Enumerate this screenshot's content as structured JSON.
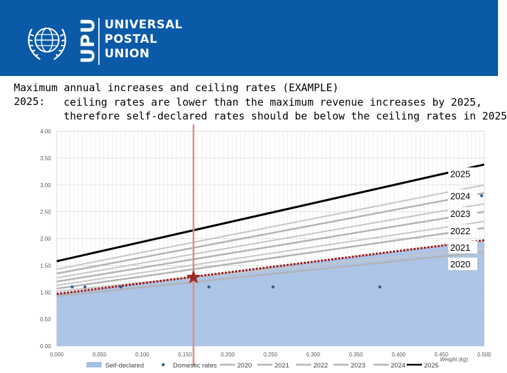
{
  "header": {
    "org_line1": "UNIVERSAL",
    "org_line2": "POSTAL",
    "org_line3": "UNION",
    "acronym": "UPU",
    "brand_color": "#0a5aa8"
  },
  "slide": {
    "title": "Maximum annual increases and ceiling rates (EXAMPLE)",
    "subtitle_key": "2025:",
    "subtitle_line1": "ceiling rates are lower than the maximum revenue increases by 2025,",
    "subtitle_line2": "therefore self-declared rates should be below the ceiling rates in 2025"
  },
  "chart_data": {
    "type": "line",
    "xlabel": "Weight (kg)",
    "xlim": [
      0,
      0.5
    ],
    "ylim": [
      0,
      4
    ],
    "x_ticks": [
      "0.000",
      "0.050",
      "0.100",
      "0.150",
      "0.200",
      "0.250",
      "0.300",
      "0.350",
      "0.400",
      "0.450",
      "0.500"
    ],
    "y_ticks": [
      "0.00",
      "0.50",
      "1.00",
      "1.50",
      "2.00",
      "2.50",
      "3.00",
      "3.50",
      "4.00"
    ],
    "grid": true,
    "legend_position": "bottom",
    "self_declared": {
      "name": "Self-declared",
      "color": "#a4bfe3",
      "x": [
        0,
        0.5
      ],
      "y": [
        0.97,
        1.97
      ]
    },
    "domestic_rates": {
      "name": "Domestic rates",
      "color": "#2e5f96",
      "x": [
        0.018,
        0.033,
        0.075,
        0.178,
        0.253,
        0.378,
        0.497
      ],
      "y": [
        1.1,
        1.1,
        1.1,
        1.1,
        1.1,
        1.1,
        2.8
      ]
    },
    "ceiling_series": [
      {
        "name": "2020",
        "x": [
          0,
          0.5
        ],
        "y": [
          0.93,
          1.75
        ],
        "color": "#b3b3b3",
        "dash": false,
        "width": 2.5
      },
      {
        "name": "2021",
        "x": [
          0,
          0.5
        ],
        "y": [
          0.97,
          1.97
        ],
        "color": "#a01818",
        "dash": true,
        "width": 3
      },
      {
        "name": "2022",
        "x": [
          0,
          0.5
        ],
        "y": [
          1.07,
          2.2
        ],
        "color": "#b3b3b3",
        "dash": false,
        "width": 2.5
      },
      {
        "name": "2023",
        "x": [
          0,
          0.5
        ],
        "y": [
          1.2,
          2.5
        ],
        "color": "#b3b3b3",
        "dash": false,
        "width": 2.5
      },
      {
        "name": "2024",
        "x": [
          0,
          0.5
        ],
        "y": [
          1.35,
          2.85
        ],
        "color": "#b3b3b3",
        "dash": false,
        "width": 2.5
      },
      {
        "name": "2025",
        "x": [
          0,
          0.5
        ],
        "y": [
          1.58,
          3.38
        ],
        "color": "#000000",
        "dash": false,
        "width": 3
      }
    ],
    "extra_gray_lines": [
      {
        "x": [
          0,
          0.5
        ],
        "y": [
          1.02,
          1.82
        ]
      },
      {
        "x": [
          0,
          0.5
        ],
        "y": [
          1.13,
          2.32
        ]
      },
      {
        "x": [
          0,
          0.5
        ],
        "y": [
          1.27,
          2.65
        ]
      },
      {
        "x": [
          0,
          0.5
        ],
        "y": [
          1.43,
          3.0
        ]
      }
    ],
    "series_labels": [
      {
        "text": "2025",
        "y": 3.21
      },
      {
        "text": "2024",
        "y": 2.8
      },
      {
        "text": "2023",
        "y": 2.47
      },
      {
        "text": "2022",
        "y": 2.15
      },
      {
        "text": "2021",
        "y": 1.84
      },
      {
        "text": "2020",
        "y": 1.53
      }
    ],
    "marker_line": {
      "x": 0.16,
      "color": "#d9908a"
    },
    "star": {
      "x": 0.16,
      "y": 1.28,
      "color": "#9e2a2b"
    },
    "legend": [
      {
        "label": "Self-declared",
        "kind": "fill",
        "color": "#a4bfe3"
      },
      {
        "label": "Domestic rates",
        "kind": "marker",
        "color": "#2e5f96"
      },
      {
        "label": "2020",
        "kind": "line",
        "color": "#b3b3b3"
      },
      {
        "label": "2021",
        "kind": "line",
        "color": "#b3b3b3"
      },
      {
        "label": "2022",
        "kind": "line",
        "color": "#b3b3b3"
      },
      {
        "label": "2023",
        "kind": "line",
        "color": "#b3b3b3"
      },
      {
        "label": "2024",
        "kind": "line",
        "color": "#b3b3b3"
      },
      {
        "label": "2025",
        "kind": "line",
        "color": "#000000"
      }
    ]
  }
}
